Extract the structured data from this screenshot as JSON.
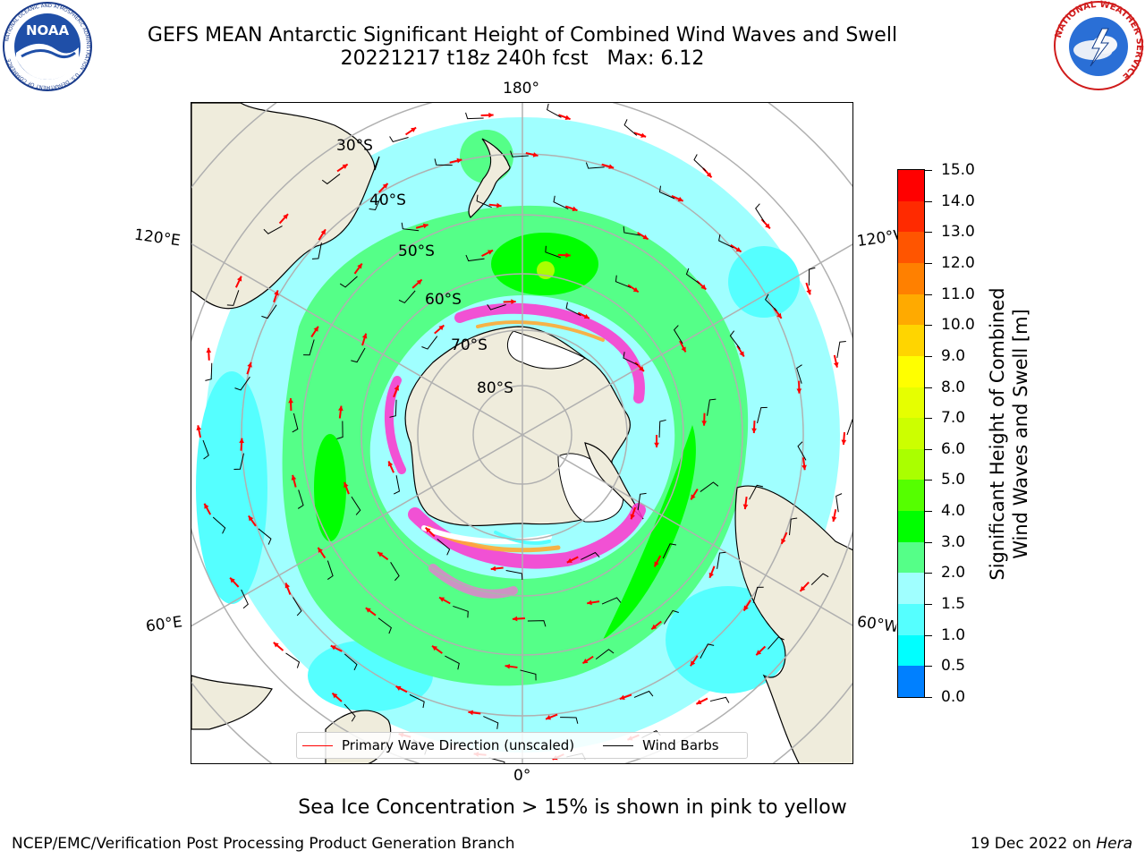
{
  "header": {
    "title_line1": "GEFS MEAN Antarctic Significant Height of Combined Wind Waves and Swell",
    "title_line2": "20221217 t18z 240h fcst   Max: 6.12"
  },
  "logos": {
    "left": {
      "name": "NOAA",
      "text": "NOAA",
      "ring_text": "NATIONAL OCEANIC AND ATMOSPHERIC ADMINISTRATION · U.S. DEPARTMENT OF COMMERCE"
    },
    "right": {
      "name": "National Weather Service",
      "ring_text": "NATIONAL WEATHER SERVICE"
    }
  },
  "map": {
    "projection": "south polar stereographic",
    "lon_labels": {
      "top": "180°",
      "bottom": "0°",
      "upper_left": "120°E",
      "upper_right": "120°W",
      "lower_left": "60°E",
      "lower_right": "60°W"
    },
    "lat_labels": [
      "30°S",
      "40°S",
      "50°S",
      "60°S",
      "70°S",
      "80°S"
    ],
    "colors": {
      "land": "#efecdc",
      "ice_sheet": "#ffffff",
      "grid": "#b0b0b0",
      "sea_ice": "#ff33cc",
      "wave_arrow": "#ff0000",
      "wind_barb": "#000000"
    }
  },
  "legend": {
    "primary_wave": "Primary Wave Direction (unscaled)",
    "wind_barbs": "Wind Barbs"
  },
  "colorbar": {
    "label_line1": "Significant Height of Combined",
    "label_line2": "Wind Waves and Swell [m]",
    "ticks": [
      "15.0",
      "14.0",
      "13.0",
      "12.0",
      "11.0",
      "10.0",
      "9.0",
      "8.0",
      "7.0",
      "6.0",
      "5.0",
      "4.0",
      "3.0",
      "2.0",
      "1.5",
      "1.0",
      "0.5",
      "0.0"
    ],
    "colors_top_to_bottom": [
      "#ff0000",
      "#ff2a00",
      "#ff5500",
      "#ff8000",
      "#ffaa00",
      "#ffd500",
      "#ffff00",
      "#e6ff00",
      "#ccff00",
      "#aaff00",
      "#55ff00",
      "#00ff00",
      "#55ff88",
      "#a0ffff",
      "#55ffff",
      "#00ffff",
      "#0080ff",
      "#0000ff"
    ]
  },
  "note": "Sea Ice Concentration > 15% is shown in pink to yellow",
  "footer": {
    "left": "NCEP/EMC/Verification Post Processing Product Generation Branch",
    "right_date": "19 Dec 2022 on ",
    "right_machine": "Hera"
  }
}
